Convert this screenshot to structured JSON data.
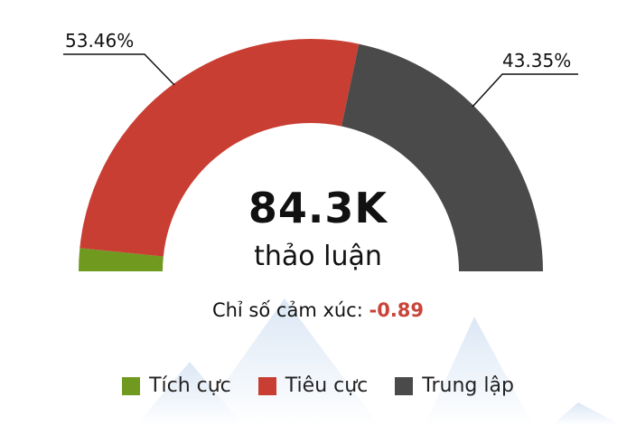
{
  "chart_data": {
    "type": "pie",
    "variant": "semi-donut",
    "series": [
      {
        "name": "Tích cực",
        "value": 3.19,
        "color": "#6f9a1f"
      },
      {
        "name": "Tiêu cực",
        "value": 53.46,
        "color": "#c83e33"
      },
      {
        "name": "Trung lập",
        "value": 43.35,
        "color": "#4a4a4a"
      }
    ],
    "data_labels": {
      "tieu_cuc": "53.46%",
      "trung_lap": "43.35%"
    },
    "center": {
      "total": "84.3K",
      "unit": "thảo luận"
    },
    "sentiment": {
      "label": "Chỉ số cảm xúc:",
      "value": "-0.89"
    },
    "legend": {
      "position": "bottom"
    }
  }
}
